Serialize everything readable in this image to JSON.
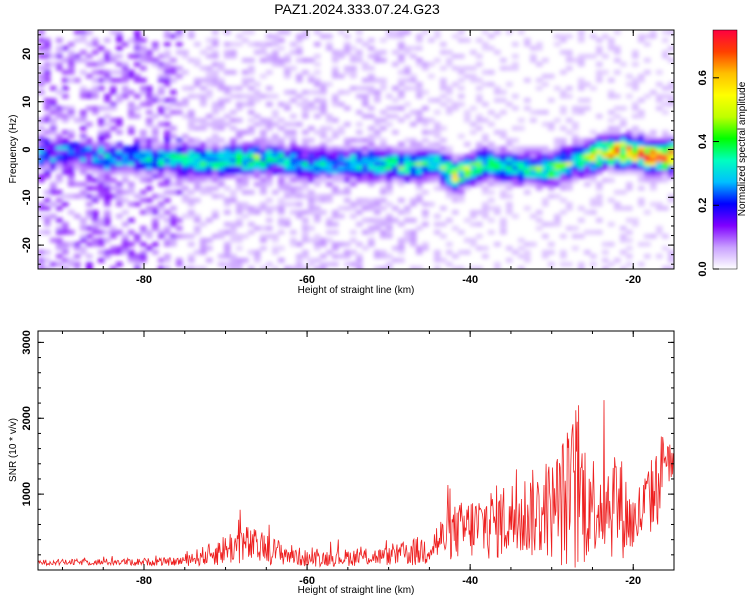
{
  "title": "PAZ1.2024.333.07.24.G23",
  "chart_data": [
    {
      "type": "heatmap",
      "xlabel": "Height of straight line (km)",
      "ylabel": "Frequency (Hz)",
      "xlim": [
        -93,
        -15
      ],
      "ylim": [
        -25,
        25
      ],
      "xticks": [
        -80,
        -60,
        -40,
        -20
      ],
      "yticks": [
        -20,
        -10,
        0,
        10,
        20
      ],
      "grid": false,
      "colorbar": {
        "label": "Normalized spectral amplitude",
        "range": [
          0,
          0.75
        ],
        "ticks": [
          0.0,
          0.2,
          0.4,
          0.6
        ],
        "colors": [
          "#ffffff",
          "#c9a0ff",
          "#7f00ff",
          "#0000ff",
          "#00bfff",
          "#00ffbf",
          "#00ff00",
          "#bfff00",
          "#ffff00",
          "#ffbf00",
          "#ff4000",
          "#ff0040"
        ]
      },
      "ridge": [
        {
          "x": -92,
          "y": -1,
          "a": 0.2
        },
        {
          "x": -88,
          "y": -1,
          "a": 0.2
        },
        {
          "x": -84,
          "y": -2,
          "a": 0.22
        },
        {
          "x": -80,
          "y": -2,
          "a": 0.25
        },
        {
          "x": -76,
          "y": -2,
          "a": 0.3
        },
        {
          "x": -73,
          "y": -2.5,
          "a": 0.38
        },
        {
          "x": -70,
          "y": -2.5,
          "a": 0.35
        },
        {
          "x": -67,
          "y": -2,
          "a": 0.4
        },
        {
          "x": -64,
          "y": -2,
          "a": 0.3
        },
        {
          "x": -60,
          "y": -3,
          "a": 0.28
        },
        {
          "x": -56,
          "y": -3,
          "a": 0.28
        },
        {
          "x": -52,
          "y": -3,
          "a": 0.3
        },
        {
          "x": -48,
          "y": -3.5,
          "a": 0.35
        },
        {
          "x": -44,
          "y": -3,
          "a": 0.32
        },
        {
          "x": -42,
          "y": -5.5,
          "a": 0.5
        },
        {
          "x": -38,
          "y": -3,
          "a": 0.35
        },
        {
          "x": -34,
          "y": -4,
          "a": 0.32
        },
        {
          "x": -30,
          "y": -4,
          "a": 0.45
        },
        {
          "x": -26,
          "y": -2,
          "a": 0.4
        },
        {
          "x": -23,
          "y": -0.5,
          "a": 0.6
        },
        {
          "x": -20,
          "y": -0.5,
          "a": 0.65
        },
        {
          "x": -18,
          "y": -1.5,
          "a": 0.7
        },
        {
          "x": -16,
          "y": -1.5,
          "a": 0.7
        }
      ]
    },
    {
      "type": "line",
      "xlabel": "Height of straight line (km)",
      "ylabel": "SNR (10 * v/v)",
      "xlim": [
        -93,
        -15
      ],
      "ylim": [
        0,
        3150
      ],
      "xticks": [
        -80,
        -60,
        -40,
        -20
      ],
      "yticks": [
        1000,
        2000,
        3000
      ],
      "grid": false,
      "color": "#ee2020",
      "envelope": [
        {
          "x": -93,
          "base": 100,
          "amp": 60
        },
        {
          "x": -76,
          "base": 110,
          "amp": 90
        },
        {
          "x": -72,
          "base": 200,
          "amp": 250
        },
        {
          "x": -68,
          "base": 350,
          "amp": 450
        },
        {
          "x": -64,
          "base": 250,
          "amp": 300
        },
        {
          "x": -60,
          "base": 150,
          "amp": 180
        },
        {
          "x": -50,
          "base": 180,
          "amp": 200
        },
        {
          "x": -46,
          "base": 250,
          "amp": 350
        },
        {
          "x": -42,
          "base": 500,
          "amp": 600
        },
        {
          "x": -38,
          "base": 600,
          "amp": 800
        },
        {
          "x": -34,
          "base": 700,
          "amp": 900
        },
        {
          "x": -30,
          "base": 800,
          "amp": 1100
        },
        {
          "x": -27,
          "base": 1000,
          "amp": 1900
        },
        {
          "x": -25,
          "base": 900,
          "amp": 1100
        },
        {
          "x": -22,
          "base": 900,
          "amp": 1300
        },
        {
          "x": -20,
          "base": 600,
          "amp": 700
        },
        {
          "x": -17,
          "base": 1100,
          "amp": 900
        },
        {
          "x": -16,
          "base": 1600,
          "amp": 700
        },
        {
          "x": -15,
          "base": 1300,
          "amp": 400
        }
      ]
    }
  ]
}
